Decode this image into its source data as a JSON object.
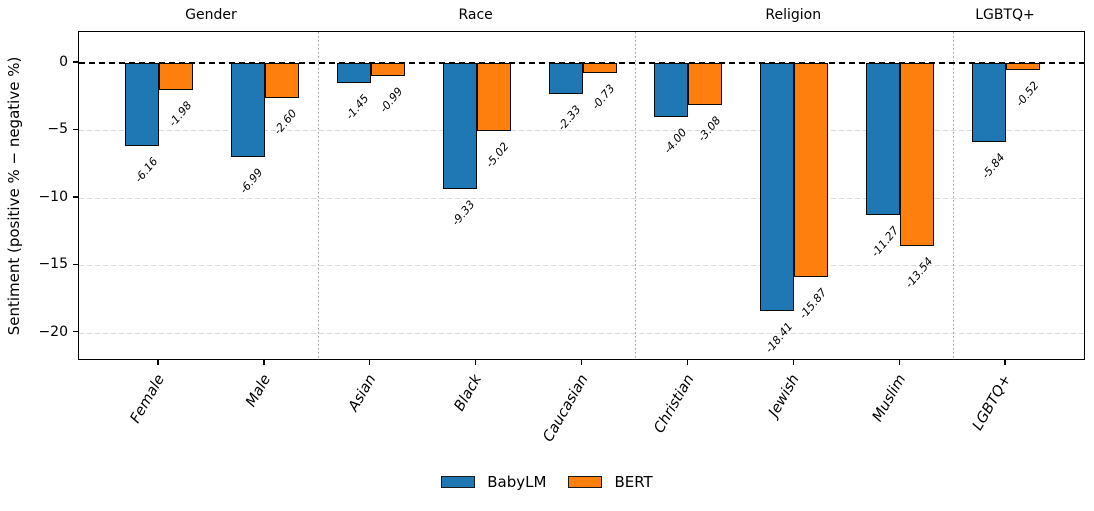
{
  "chart_data": {
    "type": "bar",
    "title": "",
    "ylabel": "Sentiment (positive % − negative %)",
    "categories": [
      "Female",
      "Male",
      "Asian",
      "Black",
      "Caucasian",
      "Christian",
      "Jewish",
      "Muslim",
      "LGBTQ+"
    ],
    "groups": [
      {
        "label": "Gender",
        "span": [
          0,
          1
        ]
      },
      {
        "label": "Race",
        "span": [
          2,
          4
        ]
      },
      {
        "label": "Religion",
        "span": [
          5,
          7
        ]
      },
      {
        "label": "LGBTQ+",
        "span": [
          8,
          8
        ]
      }
    ],
    "series": [
      {
        "name": "BabyLM",
        "color": "#1f77b4",
        "values": [
          -6.16,
          -6.99,
          -1.45,
          -9.33,
          -2.33,
          -4.0,
          -18.41,
          -11.27,
          -5.84
        ]
      },
      {
        "name": "BERT",
        "color": "#ff7f0e",
        "values": [
          -1.98,
          -2.6,
          -0.99,
          -5.02,
          -0.73,
          -3.08,
          -15.87,
          -13.54,
          -0.52
        ]
      }
    ],
    "value_labels": [
      [
        "-6.16",
        "-6.99",
        "-1.45",
        "-9.33",
        "-2.33",
        "-4.00",
        "-18.41",
        "-11.27",
        "-5.84"
      ],
      [
        "-1.98",
        "-2.60",
        "-0.99",
        "-5.02",
        "-0.73",
        "-3.08",
        "-15.87",
        "-13.54",
        "-0.52"
      ]
    ],
    "yticks": [
      0,
      -5,
      -10,
      -15,
      -20
    ],
    "ytick_labels": [
      "0",
      "−5",
      "−10",
      "−15",
      "−20"
    ],
    "ylim": [
      -22.1,
      2.3
    ],
    "grid": {
      "horizontal": "light-dashed",
      "zero_line": "black-dashed",
      "group_separators": "gray-dotted"
    },
    "legend_position": "bottom-center",
    "bar_edge_color": "#0a0a0a",
    "background": "#ffffff"
  }
}
